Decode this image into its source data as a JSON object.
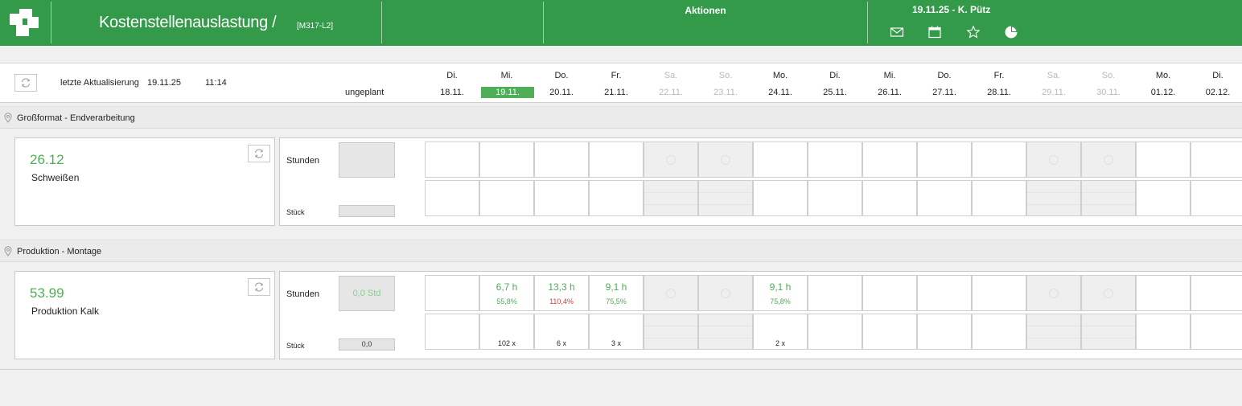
{
  "header": {
    "title": "Kostenstellenauslastung /",
    "code": "[M317-L2]",
    "actions_label": "Aktionen",
    "user_info": "19.11.25 - K. Pütz",
    "icons": [
      "mail-icon",
      "calendar-icon",
      "star-icon",
      "pie-chart-icon"
    ]
  },
  "info": {
    "last_update_label": "letzte Aktualisierung",
    "last_update_date": "19.11.25",
    "last_update_time": "11:14",
    "unplanned_label": "ungeplant"
  },
  "days": [
    {
      "name": "Di.",
      "date": "18.11.",
      "weekend": false,
      "today": false
    },
    {
      "name": "Mi.",
      "date": "19.11.",
      "weekend": false,
      "today": true
    },
    {
      "name": "Do.",
      "date": "20.11.",
      "weekend": false,
      "today": false
    },
    {
      "name": "Fr.",
      "date": "21.11.",
      "weekend": false,
      "today": false
    },
    {
      "name": "Sa.",
      "date": "22.11.",
      "weekend": true,
      "today": false
    },
    {
      "name": "So.",
      "date": "23.11.",
      "weekend": true,
      "today": false
    },
    {
      "name": "Mo.",
      "date": "24.11.",
      "weekend": false,
      "today": false
    },
    {
      "name": "Di.",
      "date": "25.11.",
      "weekend": false,
      "today": false
    },
    {
      "name": "Mi.",
      "date": "26.11.",
      "weekend": false,
      "today": false
    },
    {
      "name": "Do.",
      "date": "27.11.",
      "weekend": false,
      "today": false
    },
    {
      "name": "Fr.",
      "date": "28.11.",
      "weekend": false,
      "today": false
    },
    {
      "name": "Sa.",
      "date": "29.11.",
      "weekend": true,
      "today": false
    },
    {
      "name": "So.",
      "date": "30.11.",
      "weekend": true,
      "today": false
    },
    {
      "name": "Mo.",
      "date": "01.12.",
      "weekend": false,
      "today": false
    },
    {
      "name": "Di.",
      "date": "02.12.",
      "weekend": false,
      "today": false
    }
  ],
  "sections": [
    {
      "title": "Großformat - Endverarbeitung",
      "cost_center_number": "26.12",
      "cost_center_name": "Schweißen",
      "hours_label": "Stunden",
      "pieces_label": "Stück",
      "unplanned_hours": "",
      "unplanned_pieces": "",
      "cells": [
        {
          "hours": "",
          "pct": "",
          "over": false,
          "pieces": ""
        },
        {
          "hours": "",
          "pct": "",
          "over": false,
          "pieces": ""
        },
        {
          "hours": "",
          "pct": "",
          "over": false,
          "pieces": ""
        },
        {
          "hours": "",
          "pct": "",
          "over": false,
          "pieces": ""
        },
        {
          "hours": "",
          "pct": "",
          "over": false,
          "pieces": ""
        },
        {
          "hours": "",
          "pct": "",
          "over": false,
          "pieces": ""
        },
        {
          "hours": "",
          "pct": "",
          "over": false,
          "pieces": ""
        },
        {
          "hours": "",
          "pct": "",
          "over": false,
          "pieces": ""
        },
        {
          "hours": "",
          "pct": "",
          "over": false,
          "pieces": ""
        },
        {
          "hours": "",
          "pct": "",
          "over": false,
          "pieces": ""
        },
        {
          "hours": "",
          "pct": "",
          "over": false,
          "pieces": ""
        },
        {
          "hours": "",
          "pct": "",
          "over": false,
          "pieces": ""
        },
        {
          "hours": "",
          "pct": "",
          "over": false,
          "pieces": ""
        },
        {
          "hours": "",
          "pct": "",
          "over": false,
          "pieces": ""
        },
        {
          "hours": "",
          "pct": "",
          "over": false,
          "pieces": ""
        }
      ]
    },
    {
      "title": "Produktion - Montage",
      "cost_center_number": "53.99",
      "cost_center_name": "Produktion Kalk",
      "hours_label": "Stunden",
      "pieces_label": "Stück",
      "unplanned_hours": "0,0 Std",
      "unplanned_pieces": "0,0",
      "cells": [
        {
          "hours": "",
          "pct": "",
          "over": false,
          "pieces": ""
        },
        {
          "hours": "6,7 h",
          "pct": "55,8%",
          "over": false,
          "pieces": "102 x"
        },
        {
          "hours": "13,3 h",
          "pct": "110,4%",
          "over": true,
          "pieces": "6 x"
        },
        {
          "hours": "9,1 h",
          "pct": "75,5%",
          "over": false,
          "pieces": "3 x"
        },
        {
          "hours": "",
          "pct": "",
          "over": false,
          "pieces": ""
        },
        {
          "hours": "",
          "pct": "",
          "over": false,
          "pieces": ""
        },
        {
          "hours": "9,1 h",
          "pct": "75,8%",
          "over": false,
          "pieces": "2 x"
        },
        {
          "hours": "",
          "pct": "",
          "over": false,
          "pieces": ""
        },
        {
          "hours": "",
          "pct": "",
          "over": false,
          "pieces": ""
        },
        {
          "hours": "",
          "pct": "",
          "over": false,
          "pieces": ""
        },
        {
          "hours": "",
          "pct": "",
          "over": false,
          "pieces": ""
        },
        {
          "hours": "",
          "pct": "",
          "over": false,
          "pieces": ""
        },
        {
          "hours": "",
          "pct": "",
          "over": false,
          "pieces": ""
        },
        {
          "hours": "",
          "pct": "",
          "over": false,
          "pieces": ""
        },
        {
          "hours": "",
          "pct": "",
          "over": false,
          "pieces": ""
        }
      ]
    }
  ],
  "colors": {
    "header_green": "#339a4a",
    "value_green": "#4fae57",
    "over_red": "#d63a3a"
  }
}
